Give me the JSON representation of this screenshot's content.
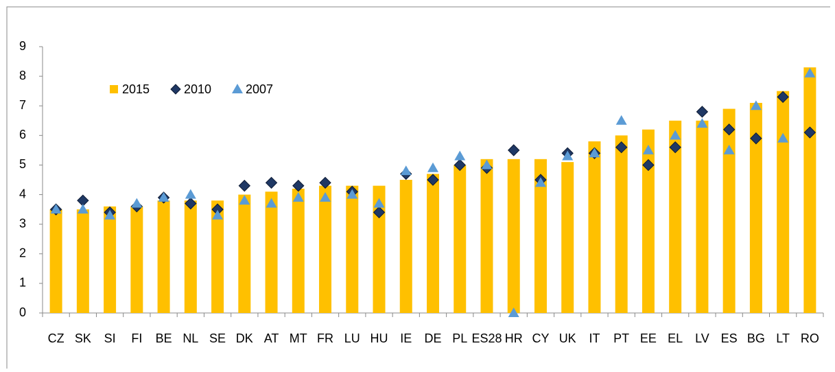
{
  "chart_data": {
    "type": "bar",
    "categories": [
      "CZ",
      "SK",
      "SI",
      "FI",
      "BE",
      "NL",
      "SE",
      "DK",
      "AT",
      "MT",
      "FR",
      "LU",
      "HU",
      "IE",
      "DE",
      "PL",
      "ES28",
      "HR",
      "CY",
      "UK",
      "IT",
      "PT",
      "EE",
      "EL",
      "LV",
      "ES",
      "BG",
      "LT",
      "RO"
    ],
    "series": [
      {
        "name": "2015",
        "type": "bar",
        "color": "#ffc000",
        "values": [
          3.5,
          3.5,
          3.6,
          3.6,
          3.8,
          3.8,
          3.8,
          4.0,
          4.1,
          4.2,
          4.3,
          4.3,
          4.3,
          4.5,
          4.7,
          5.0,
          5.2,
          5.2,
          5.2,
          5.1,
          5.8,
          6.0,
          6.2,
          6.5,
          6.5,
          6.9,
          7.1,
          7.5,
          8.3
        ]
      },
      {
        "name": "2010",
        "type": "scatter",
        "marker": "diamond",
        "color": "#1f3864",
        "values": [
          3.5,
          3.8,
          3.4,
          3.6,
          3.9,
          3.7,
          3.5,
          4.3,
          4.4,
          4.3,
          4.4,
          4.1,
          3.4,
          4.7,
          4.5,
          5.0,
          4.9,
          5.5,
          4.5,
          5.4,
          5.4,
          5.6,
          5.0,
          5.6,
          6.8,
          6.2,
          5.9,
          7.3,
          6.1
        ]
      },
      {
        "name": "2007",
        "type": "scatter",
        "marker": "triangle",
        "color": "#5b9bd5",
        "values": [
          3.5,
          3.5,
          3.3,
          3.7,
          3.9,
          4.0,
          3.3,
          3.8,
          3.7,
          3.9,
          3.9,
          4.0,
          3.7,
          4.8,
          4.9,
          5.3,
          5.0,
          0,
          4.4,
          5.3,
          5.4,
          6.5,
          5.5,
          6.0,
          6.4,
          5.5,
          7.0,
          5.9,
          8.1
        ]
      }
    ],
    "ylim": [
      0,
      9
    ],
    "yticks": [
      0,
      1,
      2,
      3,
      4,
      5,
      6,
      7,
      8,
      9
    ],
    "grid": false,
    "legend": "top-left"
  }
}
